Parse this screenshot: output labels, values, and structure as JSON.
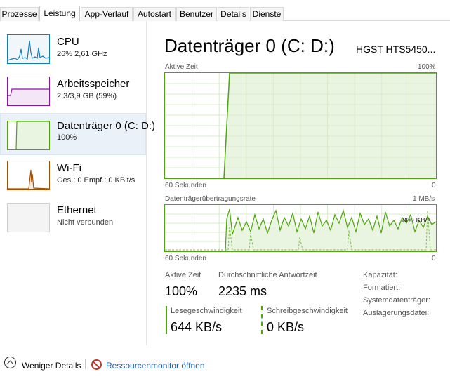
{
  "tabs": [
    {
      "label": "Prozesse",
      "active": false
    },
    {
      "label": "Leistung",
      "active": true
    },
    {
      "label": "App-Verlauf",
      "active": false
    },
    {
      "label": "Autostart",
      "active": false
    },
    {
      "label": "Benutzer",
      "active": false
    },
    {
      "label": "Details",
      "active": false
    },
    {
      "label": "Dienste",
      "active": false
    }
  ],
  "resources": [
    {
      "title": "CPU",
      "subtitle": "26% 2,61 GHz",
      "color": "#117dbb"
    },
    {
      "title": "Arbeitsspeicher",
      "subtitle": "2,3/3,9 GB (59%)",
      "color": "#8b12ae"
    },
    {
      "title": "Datenträger 0 (C: D:)",
      "subtitle": "100%",
      "color": "#4da60c",
      "selected": true
    },
    {
      "title": "Wi-Fi",
      "subtitle": "Ges.: 0 Empf.: 0 KBit/s",
      "color": "#a74f01"
    },
    {
      "title": "Ethernet",
      "subtitle": "Nicht verbunden",
      "color": "#bfbfbf"
    }
  ],
  "main": {
    "title": "Datenträger 0 (C: D:)",
    "device": "HGST HTS5450...",
    "graph1": {
      "label_top_left": "Aktive Zeit",
      "label_top_right": "100%",
      "label_bottom_left": "60 Sekunden",
      "label_bottom_right": "0"
    },
    "graph2": {
      "label_top_left": "Datenträgerübertragungsrate",
      "label_top_right": "1 MB/s",
      "label_mid_right": "800 KB/s",
      "label_bottom_left": "60 Sekunden",
      "label_bottom_right": "0"
    },
    "stats": {
      "active_time_label": "Aktive Zeit",
      "active_time_value": "100%",
      "response_label": "Durchschnittliche Antwortzeit",
      "response_value": "2235 ms",
      "read_label": "Lesegeschwindigkeit",
      "read_value": "644 KB/s",
      "write_label": "Schreibgeschwindigkeit",
      "write_value": "0 KB/s"
    },
    "properties": {
      "capacity": "Kapazität:",
      "formatted": "Formatiert:",
      "system_disk": "Systemdatenträger:",
      "pagefile": "Auslagerungsdatei:"
    }
  },
  "footer": {
    "fewer_details": "Weniger Details",
    "resource_monitor": "Ressourcenmonitor öffnen"
  },
  "colors": {
    "disk_green": "#4da60c",
    "disk_fill": "#e9f5e0",
    "grid": "#d9eccb"
  }
}
